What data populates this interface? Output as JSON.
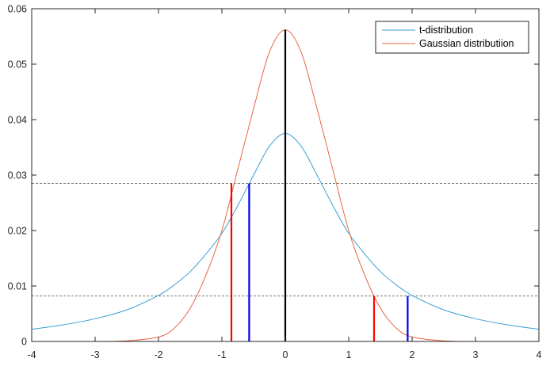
{
  "chart_data": {
    "type": "line",
    "title": "",
    "xlabel": "",
    "ylabel": "",
    "xlim": [
      -4,
      4
    ],
    "ylim": [
      0,
      0.06
    ],
    "xticks": [
      -4,
      -3,
      -2,
      -1,
      0,
      1,
      2,
      3,
      4
    ],
    "xtick_labels": [
      "-4",
      "-3",
      "-2",
      "-1",
      "0",
      "1",
      "2",
      "3",
      "4"
    ],
    "yticks": [
      0,
      0.01,
      0.02,
      0.03,
      0.04,
      0.05,
      0.06
    ],
    "ytick_labels": [
      "0",
      "0.01",
      "0.02",
      "0.03",
      "0.04",
      "0.05",
      "0.06"
    ],
    "grid": false,
    "legend_position": "top-right",
    "series": [
      {
        "name": "t-distribution",
        "color": "#3a9fd5",
        "x": [
          -4,
          -3.5,
          -3,
          -2.5,
          -2,
          -1.75,
          -1.5,
          -1.25,
          -1,
          -0.75,
          -0.5,
          -0.25,
          0,
          0.25,
          0.5,
          0.75,
          1,
          1.25,
          1.5,
          1.75,
          2,
          2.5,
          3,
          3.5,
          4
        ],
        "y": [
          0.0022,
          0.003,
          0.0041,
          0.0057,
          0.0083,
          0.0102,
          0.0126,
          0.0158,
          0.0195,
          0.0245,
          0.03,
          0.0352,
          0.0375,
          0.0352,
          0.03,
          0.0245,
          0.0195,
          0.0158,
          0.0126,
          0.0102,
          0.0083,
          0.0057,
          0.0041,
          0.003,
          0.0022
        ]
      },
      {
        "name": "Gaussian distributiion",
        "color": "#e8663f",
        "x": [
          -4,
          -3.5,
          -3,
          -2.5,
          -2,
          -1.75,
          -1.5,
          -1.25,
          -1,
          -0.75,
          -0.5,
          -0.25,
          0,
          0.25,
          0.5,
          0.75,
          1,
          1.25,
          1.5,
          1.75,
          2,
          2.5,
          3,
          3.5,
          4
        ],
        "y": [
          0.0,
          0.0,
          0.0,
          0.0001,
          0.0008,
          0.0024,
          0.006,
          0.012,
          0.02,
          0.031,
          0.042,
          0.0522,
          0.0562,
          0.0522,
          0.042,
          0.031,
          0.02,
          0.012,
          0.006,
          0.0024,
          0.0008,
          0.0001,
          0.0,
          0.0,
          0.0
        ]
      }
    ],
    "reference_lines": [
      {
        "type": "horizontal",
        "y": 0.0285,
        "style": "dashed",
        "color": "#777777"
      },
      {
        "type": "horizontal",
        "y": 0.0082,
        "style": "dashed",
        "color": "#777777"
      }
    ],
    "markers": [
      {
        "x": -0.85,
        "y": 0.0285,
        "color": "#ff0000"
      },
      {
        "x": -0.57,
        "y": 0.0285,
        "color": "#0000ee"
      },
      {
        "x": 0,
        "y": 0.0562,
        "color": "#000000"
      },
      {
        "x": 1.4,
        "y": 0.0082,
        "color": "#ff0000"
      },
      {
        "x": 1.93,
        "y": 0.0082,
        "color": "#0000ee"
      }
    ]
  }
}
